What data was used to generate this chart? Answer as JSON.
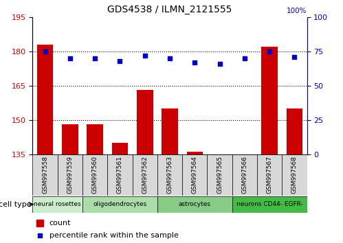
{
  "title": "GDS4538 / ILMN_2121555",
  "samples": [
    "GSM997558",
    "GSM997559",
    "GSM997560",
    "GSM997561",
    "GSM997562",
    "GSM997563",
    "GSM997564",
    "GSM997565",
    "GSM997566",
    "GSM997567",
    "GSM997568"
  ],
  "counts": [
    183,
    148,
    148,
    140,
    163,
    155,
    136,
    135,
    135,
    182,
    155
  ],
  "percentile_ranks": [
    75,
    70,
    70,
    68,
    72,
    70,
    67,
    66,
    70,
    75,
    71
  ],
  "ylim_left": [
    135,
    195
  ],
  "yticks_left": [
    135,
    150,
    165,
    180,
    195
  ],
  "ylim_right": [
    0,
    100
  ],
  "yticks_right": [
    0,
    25,
    50,
    75,
    100
  ],
  "bar_color": "#cc0000",
  "dot_color": "#0000cc",
  "cell_type_groups": [
    {
      "label": "neural rosettes",
      "start": 0,
      "end": 2,
      "color": "#cceecc"
    },
    {
      "label": "oligodendrocytes",
      "start": 2,
      "end": 5,
      "color": "#aaddaa"
    },
    {
      "label": "astrocytes",
      "start": 5,
      "end": 8,
      "color": "#88cc88"
    },
    {
      "label": "neurons CD44- EGFR-",
      "start": 8,
      "end": 11,
      "color": "#44bb44"
    }
  ],
  "legend_count_label": "count",
  "legend_percentile_label": "percentile rank within the sample",
  "cell_type_label": "cell type"
}
